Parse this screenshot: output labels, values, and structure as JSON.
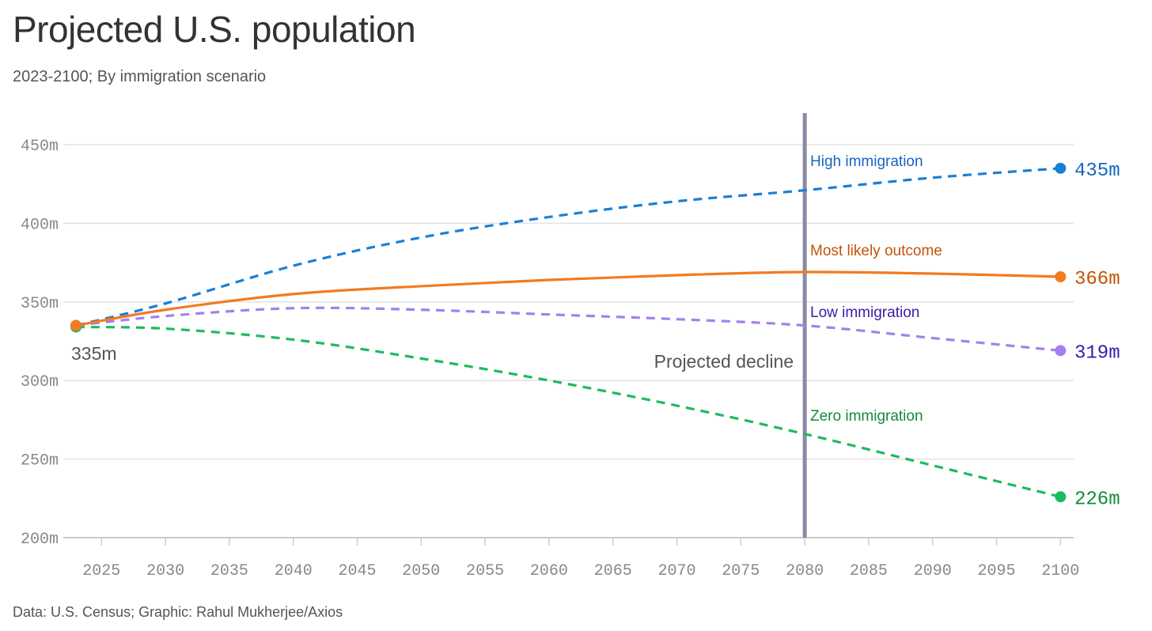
{
  "title": "Projected U.S. population",
  "subtitle": "2023-2100; By immigration scenario",
  "footer": "Data: U.S. Census; Graphic: Rahul Mukherjee/Axios",
  "chart_data": {
    "type": "line",
    "title": "Projected U.S. population",
    "xlabel": "",
    "ylabel": "",
    "xlim": [
      2023,
      2100
    ],
    "ylim": [
      200,
      460
    ],
    "yticks": [
      200,
      250,
      300,
      350,
      400,
      450
    ],
    "ytick_labels": [
      "200m",
      "250m",
      "300m",
      "350m",
      "400m",
      "450m"
    ],
    "xticks": [
      2025,
      2030,
      2035,
      2040,
      2045,
      2050,
      2055,
      2060,
      2065,
      2070,
      2075,
      2080,
      2085,
      2090,
      2095,
      2100
    ],
    "grid": true,
    "x": [
      2023,
      2030,
      2040,
      2050,
      2060,
      2070,
      2080,
      2090,
      2100
    ],
    "start_label": "335m",
    "series": [
      {
        "name": "High immigration",
        "color": "#1a7fd6",
        "label_color": "#1565c0",
        "dashed": true,
        "values": [
          335,
          349,
          373,
          391,
          404,
          414,
          421,
          429,
          435
        ],
        "end_label": "435m"
      },
      {
        "name": "Most likely outcome",
        "color": "#f47a1f",
        "label_color": "#c2530a",
        "dashed": false,
        "values": [
          335,
          345,
          355,
          360,
          364,
          367,
          369,
          368,
          366
        ],
        "end_label": "366m"
      },
      {
        "name": "Low immigration",
        "color": "#a57ff0",
        "label_color": "#3d1aa8",
        "dashed": true,
        "values": [
          335,
          341,
          346,
          345,
          342,
          339,
          335,
          327,
          319
        ],
        "end_label": "319m"
      },
      {
        "name": "Zero immigration",
        "color": "#1dbb5f",
        "label_color": "#138a3d",
        "dashed": true,
        "values": [
          334,
          333,
          326,
          314,
          300,
          284,
          266,
          246,
          226
        ],
        "end_label": "226m"
      }
    ],
    "annotation": {
      "year": 2080,
      "label": "Projected decline",
      "color": "#8a8aa6"
    }
  }
}
